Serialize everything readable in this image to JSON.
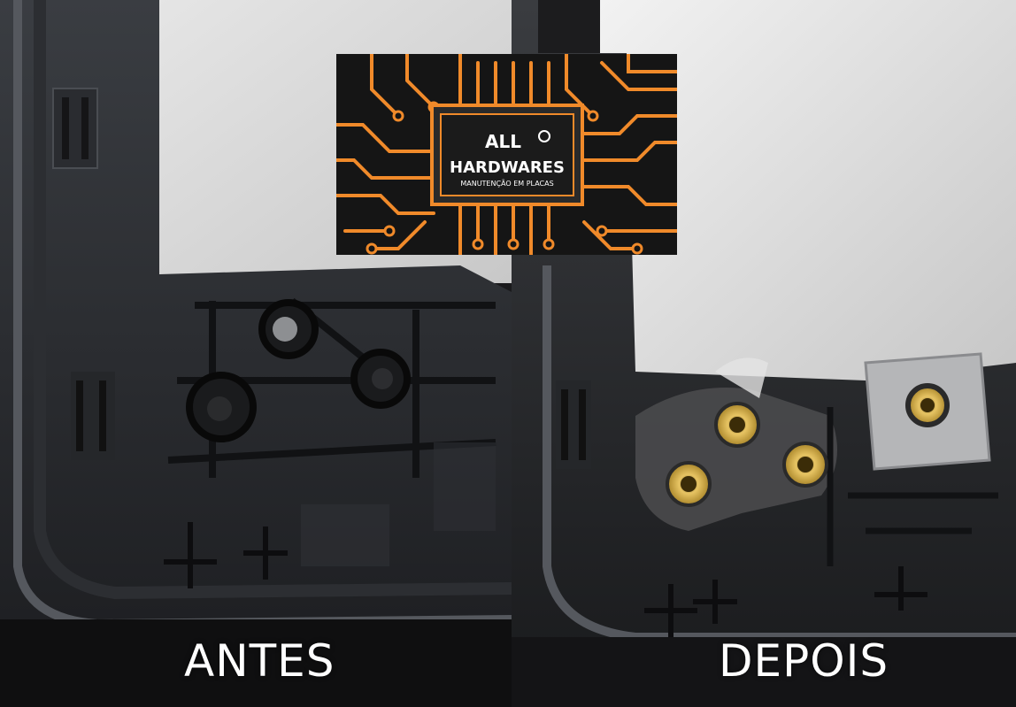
{
  "captions": {
    "before": "ANTES",
    "after": "DEPOIS"
  },
  "logo": {
    "line1": "ALL",
    "line2": "HARDWARES",
    "tagline": "MANUTENÇÃO EM PLACAS"
  },
  "colors": {
    "circuit": "#f08a2a",
    "logo_bg": "#151515",
    "chip": "#2a2a2a",
    "insert_brass": "#c9a444"
  }
}
